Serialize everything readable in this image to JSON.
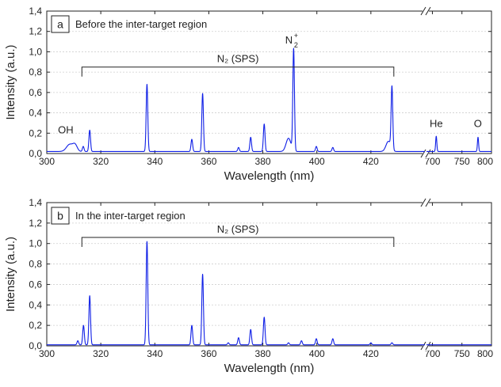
{
  "chart_data": [
    {
      "type": "line",
      "panel_label": "a",
      "panel_title": "Before the inter-target region",
      "xlabel": "Wavelength (nm)",
      "ylabel": "Intensity (a.u.)",
      "ylim": [
        0,
        1.4
      ],
      "y_ticks": [
        "0,0",
        "0,2",
        "0,4",
        "0,6",
        "0,8",
        "1,0",
        "1,2",
        "1,4"
      ],
      "x_break": {
        "segments": [
          [
            300,
            440
          ],
          [
            690,
            800
          ]
        ],
        "axis_break_mark": "//"
      },
      "x_ticks": [
        "300",
        "320",
        "340",
        "360",
        "380",
        "400",
        "420",
        "700",
        "750",
        "800"
      ],
      "grid": "horizontal dotted",
      "series": [
        {
          "color": "#0f1fe6",
          "baseline": 0.02,
          "peaks": [
            {
              "x": 308.5,
              "y": 0.09,
              "w": 1.2
            },
            {
              "x": 310.5,
              "y": 0.08,
              "w": 0.8
            },
            {
              "x": 313.5,
              "y": 0.07,
              "w": 0.3
            },
            {
              "x": 315.9,
              "y": 0.23,
              "w": 0.3
            },
            {
              "x": 337.1,
              "y": 0.68,
              "w": 0.3
            },
            {
              "x": 353.7,
              "y": 0.14,
              "w": 0.3
            },
            {
              "x": 357.7,
              "y": 0.59,
              "w": 0.3
            },
            {
              "x": 371.0,
              "y": 0.06,
              "w": 0.3
            },
            {
              "x": 375.5,
              "y": 0.16,
              "w": 0.3
            },
            {
              "x": 380.5,
              "y": 0.29,
              "w": 0.3
            },
            {
              "x": 389.5,
              "y": 0.15,
              "w": 0.9
            },
            {
              "x": 391.4,
              "y": 1.02,
              "w": 0.3
            },
            {
              "x": 399.8,
              "y": 0.07,
              "w": 0.3
            },
            {
              "x": 405.9,
              "y": 0.06,
              "w": 0.3
            },
            {
              "x": 426.5,
              "y": 0.12,
              "w": 0.9
            },
            {
              "x": 427.8,
              "y": 0.63,
              "w": 0.3
            },
            {
              "x": 706.5,
              "y": 0.17,
              "w": 1.0
            },
            {
              "x": 777.2,
              "y": 0.16,
              "w": 1.0
            }
          ]
        }
      ],
      "annotations": [
        {
          "text": "OH",
          "x": 307,
          "y": 0.2
        },
        {
          "text": "He",
          "x": 706.5,
          "y": 0.26
        },
        {
          "text": "O",
          "x": 777,
          "y": 0.26
        }
      ],
      "bracket": {
        "label": "N₂ (SPS)",
        "from": 313,
        "to": 428.5,
        "y": 0.85
      },
      "ion_label": {
        "base": "N",
        "sub": "2",
        "sup": "+",
        "x": 391.4,
        "y": 1.08
      }
    },
    {
      "type": "line",
      "panel_label": "b",
      "panel_title": "In the inter-target region",
      "xlabel": "Wavelength (nm)",
      "ylabel": "Intensity (a.u.)",
      "ylim": [
        0,
        1.4
      ],
      "y_ticks": [
        "0,0",
        "0,2",
        "0,4",
        "0,6",
        "0,8",
        "1,0",
        "1,2",
        "1,4"
      ],
      "x_break": {
        "segments": [
          [
            300,
            440
          ],
          [
            690,
            800
          ]
        ],
        "axis_break_mark": "//"
      },
      "x_ticks": [
        "300",
        "320",
        "340",
        "360",
        "380",
        "400",
        "420",
        "700",
        "750",
        "800"
      ],
      "grid": "horizontal dotted",
      "series": [
        {
          "color": "#0f1fe6",
          "baseline": 0.01,
          "peaks": [
            {
              "x": 311.5,
              "y": 0.05,
              "w": 0.3
            },
            {
              "x": 313.6,
              "y": 0.2,
              "w": 0.3
            },
            {
              "x": 315.9,
              "y": 0.49,
              "w": 0.3
            },
            {
              "x": 337.1,
              "y": 1.02,
              "w": 0.3
            },
            {
              "x": 353.7,
              "y": 0.2,
              "w": 0.3
            },
            {
              "x": 357.7,
              "y": 0.7,
              "w": 0.3
            },
            {
              "x": 367.2,
              "y": 0.03,
              "w": 0.3
            },
            {
              "x": 371.0,
              "y": 0.08,
              "w": 0.3
            },
            {
              "x": 375.5,
              "y": 0.16,
              "w": 0.3
            },
            {
              "x": 380.5,
              "y": 0.28,
              "w": 0.3
            },
            {
              "x": 389.5,
              "y": 0.03,
              "w": 0.3
            },
            {
              "x": 394.3,
              "y": 0.05,
              "w": 0.3
            },
            {
              "x": 399.8,
              "y": 0.07,
              "w": 0.3
            },
            {
              "x": 405.9,
              "y": 0.07,
              "w": 0.3
            },
            {
              "x": 420.0,
              "y": 0.03,
              "w": 0.3
            },
            {
              "x": 427.8,
              "y": 0.03,
              "w": 0.3
            }
          ]
        }
      ],
      "annotations": [],
      "bracket": {
        "label": "N₂ (SPS)",
        "from": 313,
        "to": 428.5,
        "y": 1.06
      }
    }
  ]
}
